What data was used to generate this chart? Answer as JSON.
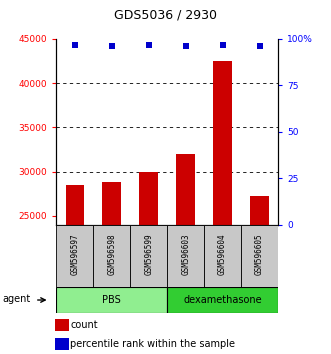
{
  "title": "GDS5036 / 2930",
  "samples": [
    "GSM596597",
    "GSM596598",
    "GSM596599",
    "GSM596603",
    "GSM596604",
    "GSM596605"
  ],
  "counts": [
    28500,
    28800,
    30000,
    32000,
    42500,
    27200
  ],
  "percentile_ranks": [
    97,
    96,
    97,
    96,
    97,
    96
  ],
  "groups": [
    "PBS",
    "PBS",
    "PBS",
    "dexamethasone",
    "dexamethasone",
    "dexamethasone"
  ],
  "ylim_left": [
    24000,
    45000
  ],
  "ylim_right": [
    0,
    100
  ],
  "yticks_left": [
    25000,
    30000,
    35000,
    40000,
    45000
  ],
  "ytick_labels_left": [
    "25000",
    "30000",
    "35000",
    "40000",
    "45000"
  ],
  "yticks_right": [
    0,
    25,
    50,
    75,
    100
  ],
  "ytick_labels_right": [
    "0",
    "25",
    "50",
    "75",
    "100%"
  ],
  "grid_yticks": [
    30000,
    35000,
    40000
  ],
  "bar_color": "#CC0000",
  "dot_color": "#0000CC",
  "bar_width": 0.5,
  "bg_color_samples": "#C8C8C8",
  "bg_color_pbs": "#90EE90",
  "bg_color_dex": "#32CD32",
  "legend_count_color": "#CC0000",
  "legend_pct_color": "#0000CC",
  "group_defs": [
    {
      "label": "PBS",
      "start": 0,
      "end": 2,
      "color": "#90EE90"
    },
    {
      "label": "dexamethasone",
      "start": 3,
      "end": 5,
      "color": "#32CD32"
    }
  ]
}
